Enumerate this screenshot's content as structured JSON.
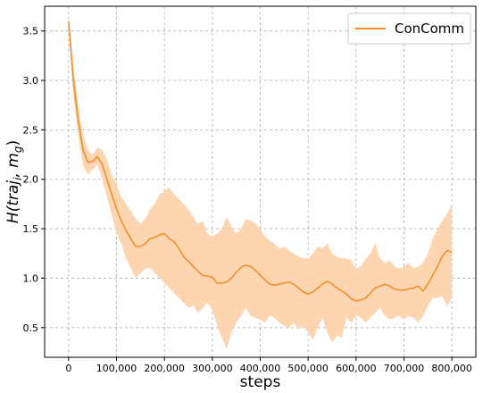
{
  "chart_data": {
    "type": "line",
    "xlabel": "steps",
    "ylabel": "H(traj_i, m_g)",
    "ylabel_parts": {
      "main": "H(traj",
      "sub_i": "i",
      "mid": ", m",
      "sub_g": "g",
      "end": ")"
    },
    "xlim": [
      -50000,
      850000
    ],
    "ylim": [
      0.2,
      3.75
    ],
    "x_ticks": [
      0,
      100000,
      200000,
      300000,
      400000,
      500000,
      600000,
      700000,
      800000
    ],
    "x_tick_labels": [
      "0",
      "100,000",
      "200,000",
      "300,000",
      "400,000",
      "500,000",
      "600,000",
      "700,000",
      "800,000"
    ],
    "y_ticks": [
      0.5,
      1.0,
      1.5,
      2.0,
      2.5,
      3.0,
      3.5
    ],
    "y_tick_labels": [
      "0.5",
      "1.0",
      "1.5",
      "2.0",
      "2.5",
      "3.0",
      "3.5"
    ],
    "grid": true,
    "legend_position": "top-right",
    "series": [
      {
        "name": "ConComm",
        "color": "#f28e2b",
        "band_color": "#fdd0a8",
        "x": [
          0,
          10000,
          20000,
          30000,
          40000,
          50000,
          60000,
          70000,
          80000,
          90000,
          100000,
          110000,
          120000,
          130000,
          140000,
          150000,
          160000,
          170000,
          180000,
          190000,
          200000,
          210000,
          220000,
          230000,
          240000,
          250000,
          260000,
          270000,
          280000,
          290000,
          300000,
          310000,
          320000,
          330000,
          340000,
          350000,
          360000,
          370000,
          380000,
          390000,
          400000,
          410000,
          420000,
          430000,
          440000,
          450000,
          460000,
          470000,
          480000,
          490000,
          500000,
          510000,
          520000,
          530000,
          540000,
          550000,
          560000,
          570000,
          580000,
          590000,
          600000,
          610000,
          620000,
          630000,
          640000,
          650000,
          660000,
          670000,
          680000,
          690000,
          700000,
          710000,
          720000,
          730000,
          740000,
          750000,
          760000,
          770000,
          780000,
          790000,
          800000
        ],
        "y": [
          3.6,
          3.0,
          2.6,
          2.3,
          2.17,
          2.18,
          2.23,
          2.15,
          2.0,
          1.85,
          1.7,
          1.58,
          1.48,
          1.4,
          1.32,
          1.32,
          1.35,
          1.4,
          1.41,
          1.44,
          1.45,
          1.4,
          1.37,
          1.3,
          1.22,
          1.17,
          1.12,
          1.07,
          1.03,
          1.02,
          1.01,
          0.95,
          0.95,
          0.96,
          1.0,
          1.06,
          1.11,
          1.13,
          1.12,
          1.08,
          1.03,
          0.98,
          0.94,
          0.93,
          0.94,
          0.95,
          0.96,
          0.94,
          0.9,
          0.86,
          0.84,
          0.86,
          0.9,
          0.94,
          0.97,
          0.94,
          0.9,
          0.87,
          0.84,
          0.79,
          0.77,
          0.78,
          0.8,
          0.85,
          0.9,
          0.92,
          0.94,
          0.92,
          0.89,
          0.88,
          0.88,
          0.89,
          0.9,
          0.92,
          0.87,
          0.94,
          1.03,
          1.12,
          1.22,
          1.28,
          1.26
        ],
        "lower": [
          3.55,
          2.85,
          2.45,
          2.15,
          2.05,
          2.1,
          2.15,
          2.0,
          1.82,
          1.65,
          1.45,
          1.35,
          1.2,
          1.1,
          1.0,
          1.05,
          1.1,
          1.1,
          1.05,
          1.0,
          0.95,
          0.9,
          0.85,
          0.8,
          0.75,
          0.7,
          0.72,
          0.65,
          0.7,
          0.75,
          0.68,
          0.52,
          0.4,
          0.28,
          0.45,
          0.55,
          0.62,
          0.7,
          0.62,
          0.6,
          0.58,
          0.55,
          0.62,
          0.6,
          0.55,
          0.52,
          0.5,
          0.55,
          0.48,
          0.52,
          0.45,
          0.38,
          0.5,
          0.6,
          0.45,
          0.35,
          0.42,
          0.4,
          0.6,
          0.55,
          0.62,
          0.6,
          0.55,
          0.6,
          0.65,
          0.7,
          0.62,
          0.58,
          0.6,
          0.62,
          0.58,
          0.62,
          0.6,
          0.55,
          0.62,
          0.72,
          0.8,
          0.8,
          0.82,
          0.72,
          0.8
        ],
        "upper": [
          3.65,
          3.15,
          2.75,
          2.45,
          2.3,
          2.25,
          2.32,
          2.3,
          2.2,
          2.05,
          1.95,
          1.82,
          1.75,
          1.68,
          1.6,
          1.55,
          1.6,
          1.7,
          1.75,
          1.85,
          1.88,
          1.92,
          1.85,
          1.8,
          1.75,
          1.7,
          1.62,
          1.55,
          1.58,
          1.45,
          1.42,
          1.45,
          1.5,
          1.62,
          1.52,
          1.45,
          1.5,
          1.6,
          1.58,
          1.55,
          1.5,
          1.42,
          1.38,
          1.35,
          1.3,
          1.32,
          1.28,
          1.25,
          1.22,
          1.2,
          1.2,
          1.25,
          1.32,
          1.3,
          1.35,
          1.25,
          1.22,
          1.2,
          1.2,
          1.18,
          1.1,
          1.12,
          1.2,
          1.25,
          1.35,
          1.2,
          1.15,
          1.18,
          1.12,
          1.1,
          1.12,
          1.15,
          1.1,
          1.12,
          1.15,
          1.25,
          1.4,
          1.5,
          1.58,
          1.65,
          1.75
        ]
      }
    ]
  }
}
